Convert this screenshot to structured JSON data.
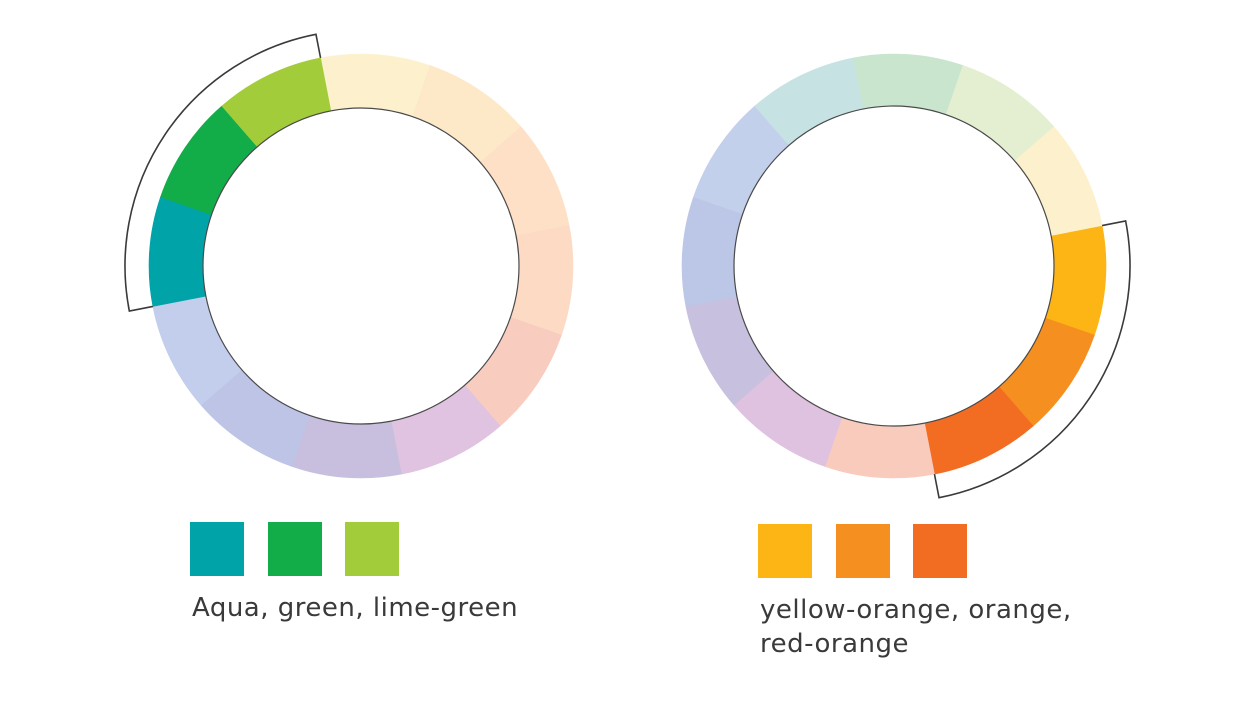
{
  "wheels": [
    {
      "name": "left-wheel",
      "segments": [
        {
          "name": "pale-yellow",
          "color": "#fdf1cd"
        },
        {
          "name": "pale-yellow-orange",
          "color": "#fde8c8"
        },
        {
          "name": "pale-orange",
          "color": "#fde0c6"
        },
        {
          "name": "pale-red-orange",
          "color": "#fddac3"
        },
        {
          "name": "pale-red",
          "color": "#f8cdbf"
        },
        {
          "name": "pale-red-violet",
          "color": "#dfc3e0"
        },
        {
          "name": "pale-violet",
          "color": "#c8bfdf"
        },
        {
          "name": "pale-blue-violet",
          "color": "#bdc4e5"
        },
        {
          "name": "pale-blue",
          "color": "#c2ceec"
        },
        {
          "name": "aqua",
          "color": "#00a3a8"
        },
        {
          "name": "green",
          "color": "#12ad49"
        },
        {
          "name": "lime-green",
          "color": "#a3cc3a"
        }
      ],
      "highlight": [
        9,
        10,
        11
      ]
    },
    {
      "name": "right-wheel",
      "segments": [
        {
          "name": "yellow-orange",
          "color": "#fdb515"
        },
        {
          "name": "orange",
          "color": "#f58f1f"
        },
        {
          "name": "red-orange",
          "color": "#f26d22"
        },
        {
          "name": "pale-red",
          "color": "#f8cbbd"
        },
        {
          "name": "pale-red-violet",
          "color": "#dfc2e0"
        },
        {
          "name": "pale-violet",
          "color": "#c8c0df"
        },
        {
          "name": "pale-blue-violet",
          "color": "#bcc6e6"
        },
        {
          "name": "pale-blue",
          "color": "#c3d0ec"
        },
        {
          "name": "pale-aqua",
          "color": "#c6e2e2"
        },
        {
          "name": "pale-green",
          "color": "#c9e5cd"
        },
        {
          "name": "pale-lime",
          "color": "#e4efd1"
        },
        {
          "name": "pale-yellow",
          "color": "#fdf1cd"
        }
      ],
      "highlight": [
        0,
        1,
        2
      ]
    }
  ],
  "groups": [
    {
      "swatches": [
        {
          "name": "aqua",
          "color": "#00a3a8"
        },
        {
          "name": "green",
          "color": "#12ad49"
        },
        {
          "name": "lime-green",
          "color": "#a3cc3a"
        }
      ],
      "caption_lines": [
        "Aqua, green, lime-green"
      ]
    },
    {
      "swatches": [
        {
          "name": "yellow-orange",
          "color": "#fdb515"
        },
        {
          "name": "orange",
          "color": "#f58f1f"
        },
        {
          "name": "red-orange",
          "color": "#f26d22"
        }
      ],
      "caption_lines": [
        "yellow-orange, orange,",
        "red-orange"
      ]
    }
  ]
}
